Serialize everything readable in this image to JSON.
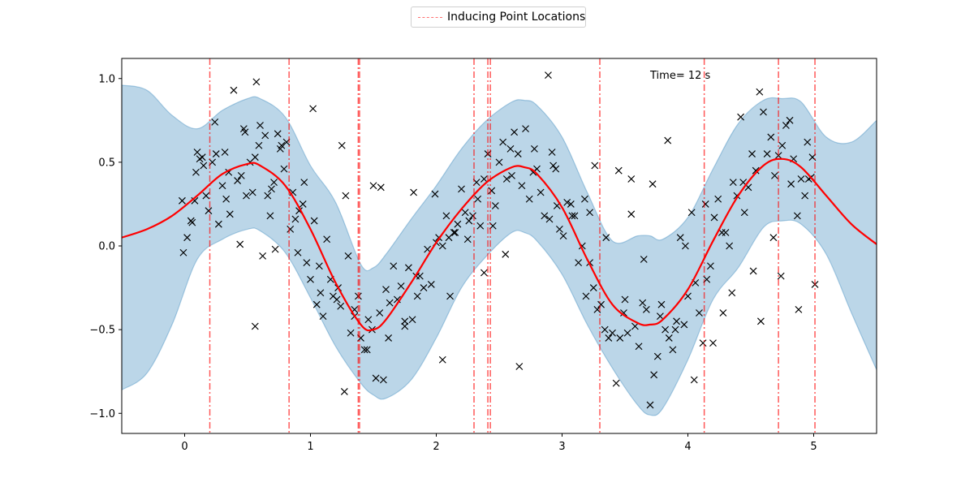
{
  "chart_data": {
    "type": "scatter",
    "title": "",
    "xlabel": "",
    "ylabel": "",
    "xlim": [
      -0.5,
      5.5
    ],
    "ylim": [
      -1.12,
      1.12
    ],
    "grid": false,
    "legend": {
      "placement": "top-center",
      "entries": [
        "Inducing Point Locations"
      ]
    },
    "annotation": "Time= 12 s",
    "x_ticks": [
      0,
      1,
      2,
      3,
      4,
      5
    ],
    "x_tick_labels": [
      "0",
      "1",
      "2",
      "3",
      "4",
      "5"
    ],
    "y_ticks": [
      -1.0,
      -0.5,
      0.0,
      0.5,
      1.0
    ],
    "y_tick_labels": [
      "−1.0",
      "−0.5",
      "0.0",
      "0.5",
      "1.0"
    ],
    "inducing_points": [
      0.2,
      0.83,
      1.38,
      1.39,
      2.3,
      2.41,
      2.43,
      3.3,
      4.13,
      4.72,
      5.01
    ],
    "mean_curve": {
      "x": [
        -0.5,
        -0.3,
        -0.1,
        0.1,
        0.3,
        0.5,
        0.6,
        0.8,
        1.0,
        1.2,
        1.4,
        1.5,
        1.6,
        1.8,
        2.0,
        2.2,
        2.4,
        2.6,
        2.7,
        2.8,
        3.0,
        3.2,
        3.4,
        3.6,
        3.7,
        3.8,
        4.0,
        4.2,
        4.4,
        4.6,
        4.75,
        4.9,
        5.1,
        5.3,
        5.5
      ],
      "y": [
        0.05,
        0.1,
        0.18,
        0.3,
        0.43,
        0.49,
        0.48,
        0.36,
        0.1,
        -0.22,
        -0.47,
        -0.5,
        -0.44,
        -0.22,
        0.02,
        0.22,
        0.38,
        0.47,
        0.47,
        0.43,
        0.23,
        -0.08,
        -0.35,
        -0.46,
        -0.47,
        -0.44,
        -0.26,
        0.03,
        0.3,
        0.48,
        0.52,
        0.47,
        0.3,
        0.13,
        0.01
      ]
    },
    "confidence_band": {
      "x": [
        -0.5,
        -0.3,
        -0.1,
        0.1,
        0.3,
        0.5,
        0.6,
        0.8,
        1.0,
        1.2,
        1.4,
        1.5,
        1.6,
        1.8,
        2.0,
        2.2,
        2.4,
        2.6,
        2.7,
        2.8,
        3.0,
        3.2,
        3.4,
        3.6,
        3.7,
        3.8,
        4.0,
        4.2,
        4.4,
        4.6,
        4.75,
        4.9,
        5.1,
        5.3,
        5.5
      ],
      "upper": [
        0.96,
        0.93,
        0.78,
        0.7,
        0.81,
        0.88,
        0.88,
        0.77,
        0.48,
        0.26,
        -0.11,
        -0.13,
        -0.05,
        0.16,
        0.36,
        0.58,
        0.75,
        0.86,
        0.87,
        0.84,
        0.65,
        0.32,
        0.03,
        0.06,
        0.06,
        0.04,
        0.17,
        0.46,
        0.73,
        0.87,
        0.88,
        0.86,
        0.65,
        0.62,
        0.75
      ],
      "lower": [
        -0.86,
        -0.76,
        -0.47,
        -0.08,
        0.04,
        0.1,
        0.09,
        -0.04,
        -0.31,
        -0.6,
        -0.82,
        -0.89,
        -0.91,
        -0.8,
        -0.55,
        -0.25,
        -0.06,
        0.08,
        0.08,
        0.03,
        -0.17,
        -0.47,
        -0.73,
        -0.95,
        -1.01,
        -0.97,
        -0.68,
        -0.32,
        -0.13,
        0.11,
        0.15,
        0.13,
        -0.05,
        -0.4,
        -0.74
      ]
    },
    "observations": {
      "x": [
        -0.02,
        -0.01,
        0.02,
        0.06,
        0.09,
        0.1,
        0.12,
        0.14,
        0.17,
        0.19,
        0.22,
        0.24,
        0.27,
        0.3,
        0.33,
        0.36,
        0.39,
        0.42,
        0.44,
        0.47,
        0.49,
        0.52,
        0.54,
        0.56,
        0.57,
        0.59,
        0.62,
        0.64,
        0.66,
        0.69,
        0.71,
        0.74,
        0.77,
        0.79,
        0.81,
        0.84,
        0.86,
        0.88,
        0.91,
        0.94,
        0.97,
        1.0,
        1.03,
        1.05,
        1.08,
        1.1,
        1.13,
        1.16,
        1.18,
        1.21,
        1.24,
        1.27,
        1.3,
        1.32,
        1.35,
        1.38,
        1.4,
        1.43,
        1.46,
        1.49,
        1.52,
        1.55,
        1.58,
        1.6,
        1.63,
        1.66,
        1.69,
        1.72,
        1.75,
        1.78,
        1.81,
        1.84,
        1.87,
        1.9,
        1.93,
        1.96,
        1.99,
        2.02,
        2.05,
        2.08,
        2.11,
        2.14,
        2.17,
        2.2,
        2.23,
        2.26,
        2.29,
        2.32,
        2.35,
        2.38,
        2.41,
        2.44,
        2.47,
        2.5,
        2.53,
        2.56,
        2.59,
        2.62,
        2.65,
        2.68,
        2.71,
        2.74,
        2.77,
        2.8,
        2.83,
        2.86,
        2.89,
        2.92,
        2.95,
        2.98,
        3.01,
        3.04,
        3.07,
        3.1,
        3.13,
        3.16,
        3.19,
        3.22,
        3.25,
        3.28,
        3.31,
        3.34,
        3.37,
        3.4,
        3.43,
        3.46,
        3.49,
        3.52,
        3.55,
        3.58,
        3.61,
        3.64,
        3.67,
        3.7,
        3.73,
        3.76,
        3.79,
        3.82,
        3.85,
        3.88,
        3.91,
        3.94,
        3.97,
        4.0,
        4.03,
        4.06,
        4.09,
        4.12,
        4.15,
        4.18,
        4.21,
        4.24,
        4.27,
        4.3,
        4.33,
        4.36,
        4.39,
        4.42,
        4.45,
        4.48,
        4.51,
        4.54,
        4.57,
        4.6,
        4.63,
        4.66,
        4.69,
        4.72,
        4.75,
        4.78,
        4.81,
        4.84,
        4.87,
        4.9,
        4.93,
        4.96,
        4.99,
        5.01,
        0.08,
        0.25,
        0.35,
        0.48,
        0.6,
        0.72,
        0.9,
        1.07,
        1.22,
        1.35,
        1.45,
        1.62,
        1.85,
        2.0,
        2.15,
        2.33,
        2.45,
        2.6,
        2.78,
        2.93,
        3.08,
        3.22,
        3.35,
        3.5,
        3.65,
        3.78,
        3.9,
        4.05,
        4.2,
        4.35,
        4.52,
        4.68,
        4.82,
        4.95,
        0.15,
        0.45,
        0.68,
        0.95,
        1.25,
        1.5,
        1.75,
        2.05,
        2.25,
        2.55,
        2.9,
        3.18,
        3.45,
        3.72,
        3.98,
        4.28,
        4.58,
        4.88,
        0.05,
        0.32,
        0.56,
        0.76,
        1.02,
        1.28,
        1.56,
        1.82,
        2.1,
        2.38,
        2.66,
        2.96,
        3.26,
        3.55,
        3.84,
        4.14,
        4.44,
        4.74,
        4.98
      ],
      "y": [
        0.27,
        -0.04,
        0.05,
        0.14,
        0.44,
        0.56,
        0.52,
        0.53,
        0.3,
        0.21,
        0.5,
        0.74,
        0.13,
        0.36,
        0.28,
        0.19,
        0.93,
        0.39,
        0.01,
        0.7,
        0.3,
        0.5,
        0.32,
        0.53,
        0.98,
        0.6,
        -0.06,
        0.66,
        0.3,
        0.34,
        0.38,
        0.67,
        0.6,
        0.46,
        0.62,
        0.1,
        0.32,
        0.16,
        0.21,
        0.25,
        -0.1,
        -0.2,
        0.15,
        -0.35,
        -0.28,
        -0.42,
        0.04,
        -0.2,
        -0.3,
        -0.32,
        -0.36,
        -0.87,
        -0.06,
        -0.52,
        -0.42,
        -0.3,
        -0.55,
        -0.62,
        -0.44,
        -0.5,
        -0.79,
        -0.4,
        -0.8,
        -0.26,
        -0.34,
        -0.12,
        -0.32,
        -0.24,
        -0.45,
        -0.13,
        -0.44,
        -0.18,
        -0.18,
        -0.25,
        -0.02,
        -0.23,
        0.31,
        0.05,
        0.0,
        0.18,
        -0.3,
        0.08,
        0.13,
        0.34,
        0.2,
        0.15,
        0.18,
        0.38,
        0.12,
        0.4,
        0.55,
        0.33,
        0.24,
        0.5,
        0.62,
        0.4,
        0.58,
        0.68,
        0.55,
        0.36,
        0.7,
        0.28,
        0.44,
        0.46,
        0.32,
        0.18,
        1.02,
        0.56,
        0.46,
        0.1,
        0.06,
        0.26,
        0.25,
        0.18,
        -0.1,
        0.0,
        -0.3,
        -0.1,
        -0.25,
        -0.38,
        -0.35,
        -0.5,
        -0.55,
        -0.52,
        -0.82,
        -0.55,
        -0.4,
        -0.52,
        0.19,
        -0.48,
        -0.6,
        -0.34,
        -0.38,
        -0.95,
        -0.77,
        -0.66,
        -0.35,
        -0.5,
        -0.55,
        -0.62,
        -0.45,
        0.05,
        -0.47,
        -0.3,
        0.2,
        -0.22,
        -0.4,
        -0.58,
        -0.2,
        -0.12,
        0.17,
        0.28,
        0.08,
        0.08,
        0.0,
        0.38,
        0.3,
        0.77,
        0.2,
        0.35,
        0.55,
        0.45,
        0.92,
        0.8,
        0.55,
        0.65,
        0.42,
        0.54,
        0.6,
        0.72,
        0.75,
        0.52,
        0.18,
        0.4,
        0.3,
        0.4,
        0.53,
        -0.23,
        0.27,
        0.55,
        0.44,
        0.68,
        0.72,
        -0.02,
        -0.04,
        -0.12,
        -0.25,
        -0.38,
        -0.62,
        -0.55,
        -0.3,
        0.02,
        0.08,
        0.28,
        0.12,
        0.42,
        0.58,
        0.48,
        0.18,
        0.2,
        0.05,
        -0.32,
        -0.08,
        -0.42,
        -0.5,
        -0.8,
        -0.58,
        -0.28,
        -0.15,
        0.05,
        0.37,
        0.62,
        0.48,
        0.42,
        0.18,
        0.38,
        0.6,
        0.36,
        -0.48,
        -0.68,
        0.04,
        -0.05,
        0.16,
        0.28,
        0.45,
        0.37,
        0.0,
        -0.4,
        -0.45,
        -0.38,
        0.15,
        0.56,
        -0.48,
        0.58,
        0.82,
        0.3,
        0.35,
        0.32,
        0.05,
        -0.16,
        -0.72,
        0.24,
        0.48,
        0.4,
        0.63,
        0.25,
        0.38,
        -0.18,
        0.41
      ]
    }
  },
  "colors": {
    "band": "#1f77b4",
    "mean": "#ff0000",
    "inducing": "#ff0000",
    "markers": "#000000"
  }
}
